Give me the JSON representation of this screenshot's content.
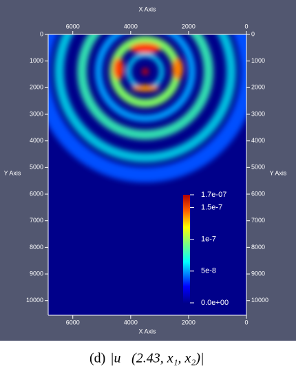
{
  "chart_data": {
    "type": "field",
    "x_axis_label": "X Axis",
    "y_axis_label": "Y Axis",
    "xlim": [
      6850,
      0
    ],
    "xticks": [
      6000,
      4000,
      2000,
      0
    ],
    "ylim": [
      0,
      10550
    ],
    "yticks": [
      0,
      1000,
      2000,
      3000,
      4000,
      5000,
      6000,
      7000,
      8000,
      9000,
      10000
    ],
    "colorbar": {
      "range": [
        0,
        1.7e-07
      ],
      "ticks": [
        {
          "value": 1.7e-07,
          "label": "1.7e-07"
        },
        {
          "value": 1.5e-07,
          "label": "1.5e-7"
        },
        {
          "value": 1e-07,
          "label": "1e-7"
        },
        {
          "value": 5e-08,
          "label": "5e-8"
        },
        {
          "value": 0,
          "label": "0.0e+00"
        }
      ]
    },
    "caption_label": "(d)",
    "caption_formula": "|u⃗(2.43, x₁, x₂)|"
  }
}
